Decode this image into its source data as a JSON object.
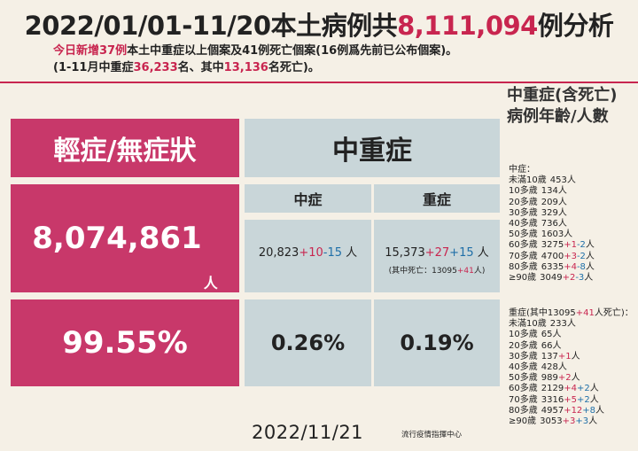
{
  "title": {
    "prefix": "2022/01/01-11/20本土病例共",
    "total": "8,111,094",
    "suffix": "例分析"
  },
  "subtitle1": {
    "p1": "今日新增37例",
    "p2": "本土中重症以上個案及41例死亡個案(16例爲先前已公布個案)。"
  },
  "subtitle2": {
    "p1": "(1-11月中重症",
    "v1": "36,233",
    "p2": "名、其中",
    "v2": "13,136",
    "p3": "名死亡)。"
  },
  "mild": {
    "label": "輕症/無症狀",
    "count": "8,074,861",
    "unit": "人",
    "percent": "99.55%"
  },
  "severe_group": {
    "label": "中重症"
  },
  "moderate": {
    "label": "中症",
    "base": "20,823",
    "plus": "+10",
    "minus": "-15",
    "unit": " 人",
    "percent": "0.26%"
  },
  "severe": {
    "label": "重症",
    "base": "15,373",
    "plus": "+27",
    "minus": "+15",
    "unit": " 人",
    "note_p1": "(其中死亡：13095",
    "note_plus": "+41",
    "note_p2": "人)",
    "percent": "0.19%"
  },
  "side": {
    "title": "中重症(含死亡)病例年齡/人數",
    "moderate_header": "中症：",
    "moderate_rows": [
      {
        "age": "未滿10歲",
        "val": "453人",
        "plus": "",
        "minus": "",
        "tail": ""
      },
      {
        "age": "10多歲",
        "val": "134人",
        "plus": "",
        "minus": "",
        "tail": ""
      },
      {
        "age": "20多歲",
        "val": "209人",
        "plus": "",
        "minus": "",
        "tail": ""
      },
      {
        "age": "30多歲",
        "val": "329人",
        "plus": "",
        "minus": "",
        "tail": ""
      },
      {
        "age": "40多歲",
        "val": "736人",
        "plus": "",
        "minus": "",
        "tail": ""
      },
      {
        "age": "50多歲",
        "val": "1603人",
        "plus": "",
        "minus": "",
        "tail": ""
      },
      {
        "age": "60多歲",
        "val": "3275",
        "plus": "+1",
        "minus": "-2",
        "tail": "人"
      },
      {
        "age": "70多歲",
        "val": "4700",
        "plus": "+3",
        "minus": "-2",
        "tail": "人"
      },
      {
        "age": "80多歲",
        "val": "6335",
        "plus": "+4",
        "minus": "-8",
        "tail": "人"
      },
      {
        "age": "≥90歲",
        "val": "3049",
        "plus": "+2",
        "minus": "-3",
        "tail": "人"
      }
    ],
    "severe_header": {
      "p1": "重症(其中13095",
      "plus": "+41",
      "p2": "人死亡)："
    },
    "severe_rows": [
      {
        "age": "未滿10歲",
        "val": "233人",
        "plus": "",
        "minus": "",
        "tail": ""
      },
      {
        "age": "10多歲",
        "val": "65人",
        "plus": "",
        "minus": "",
        "tail": ""
      },
      {
        "age": "20多歲",
        "val": "66人",
        "plus": "",
        "minus": "",
        "tail": ""
      },
      {
        "age": "30多歲",
        "val": "137",
        "plus": "+1",
        "minus": "",
        "tail": "人"
      },
      {
        "age": "40多歲",
        "val": "428人",
        "plus": "",
        "minus": "",
        "tail": ""
      },
      {
        "age": "50多歲",
        "val": "989",
        "plus": "+2",
        "minus": "",
        "tail": "人"
      },
      {
        "age": "60多歲",
        "val": "2129",
        "plus": "+4",
        "minus": "+2",
        "tail": "人"
      },
      {
        "age": "70多歲",
        "val": "3316",
        "plus": "+5",
        "minus": "+2",
        "tail": "人"
      },
      {
        "age": "80多歲",
        "val": "4957",
        "plus": "+12",
        "minus": "+8",
        "tail": "人"
      },
      {
        "age": "≥90歲",
        "val": "3053",
        "plus": "+3",
        "minus": "+3",
        "tail": "人"
      }
    ]
  },
  "footer": {
    "date": "2022/11/21",
    "org": "流行疫情指揮中心"
  },
  "colors": {
    "accent_red": "#c8254f",
    "accent_blue": "#1f6fa8",
    "pink_panel": "#c8386a",
    "teal_panel": "#c9d6d9",
    "background": "#f5f0e6"
  }
}
